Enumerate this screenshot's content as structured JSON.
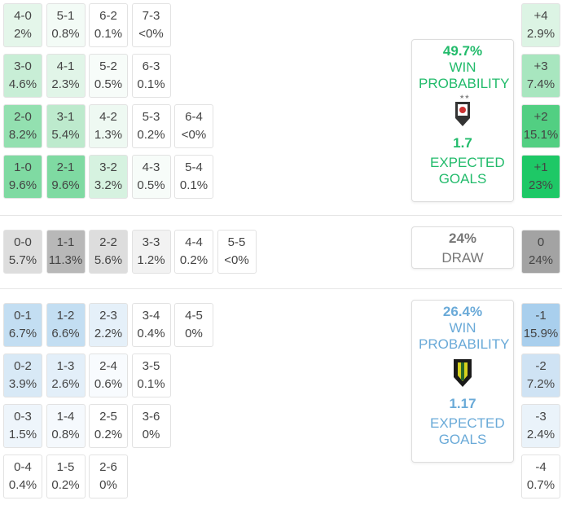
{
  "home": {
    "rows": [
      [
        {
          "score": "4-0",
          "pct": "2%",
          "color": "#e4f6ea"
        },
        {
          "score": "5-1",
          "pct": "0.8%",
          "color": "#f3fbf6"
        },
        {
          "score": "6-2",
          "pct": "0.1%",
          "color": "#ffffff"
        },
        {
          "score": "7-3",
          "pct": "<0%",
          "color": "#ffffff"
        }
      ],
      [
        {
          "score": "3-0",
          "pct": "4.6%",
          "color": "#c8eed6"
        },
        {
          "score": "4-1",
          "pct": "2.3%",
          "color": "#e1f5e8"
        },
        {
          "score": "5-2",
          "pct": "0.5%",
          "color": "#f7fcf9"
        },
        {
          "score": "6-3",
          "pct": "0.1%",
          "color": "#ffffff"
        }
      ],
      [
        {
          "score": "2-0",
          "pct": "8.2%",
          "color": "#93e0b0"
        },
        {
          "score": "3-1",
          "pct": "5.4%",
          "color": "#bdeacd"
        },
        {
          "score": "4-2",
          "pct": "1.3%",
          "color": "#eef9f2"
        },
        {
          "score": "5-3",
          "pct": "0.2%",
          "color": "#ffffff"
        },
        {
          "score": "6-4",
          "pct": "<0%",
          "color": "#ffffff"
        }
      ],
      [
        {
          "score": "1-0",
          "pct": "9.6%",
          "color": "#7fdaa2"
        },
        {
          "score": "2-1",
          "pct": "9.6%",
          "color": "#7fdaa2"
        },
        {
          "score": "3-2",
          "pct": "3.2%",
          "color": "#d6f2e0"
        },
        {
          "score": "4-3",
          "pct": "0.5%",
          "color": "#f7fcf9"
        },
        {
          "score": "5-4",
          "pct": "0.1%",
          "color": "#ffffff"
        }
      ]
    ],
    "margins": [
      {
        "label": "+4",
        "pct": "2.9%",
        "color": "#dcf4e4"
      },
      {
        "label": "+3",
        "pct": "7.4%",
        "color": "#a8e6bf"
      },
      {
        "label": "+2",
        "pct": "15.1%",
        "color": "#52cf82"
      },
      {
        "label": "+1",
        "pct": "23%",
        "color": "#1ec866"
      }
    ],
    "summary": {
      "win_pct": "49.7%",
      "win_label": "WIN PROBABILITY",
      "xg": "1.7",
      "xg_label": "EXPECTED GOALS",
      "color": "#22bb6b"
    }
  },
  "draw": {
    "row": [
      {
        "score": "0-0",
        "pct": "5.7%",
        "color": "#dddddd"
      },
      {
        "score": "1-1",
        "pct": "11.3%",
        "color": "#b8b8b8"
      },
      {
        "score": "2-2",
        "pct": "5.6%",
        "color": "#dddddd"
      },
      {
        "score": "3-3",
        "pct": "1.2%",
        "color": "#f2f2f2"
      },
      {
        "score": "4-4",
        "pct": "0.2%",
        "color": "#ffffff"
      },
      {
        "score": "5-5",
        "pct": "<0%",
        "color": "#ffffff"
      }
    ],
    "margin": {
      "label": "0",
      "pct": "24%",
      "color": "#a3a3a3"
    },
    "summary": {
      "pct": "24%",
      "label": "DRAW",
      "color": "#777777"
    }
  },
  "away": {
    "rows": [
      [
        {
          "score": "0-1",
          "pct": "6.7%",
          "color": "#c3def2"
        },
        {
          "score": "1-2",
          "pct": "6.6%",
          "color": "#c3def2"
        },
        {
          "score": "2-3",
          "pct": "2.2%",
          "color": "#e5f0f9"
        },
        {
          "score": "3-4",
          "pct": "0.4%",
          "color": "#ffffff"
        },
        {
          "score": "4-5",
          "pct": "0%",
          "color": "#ffffff"
        }
      ],
      [
        {
          "score": "0-2",
          "pct": "3.9%",
          "color": "#d8e9f6"
        },
        {
          "score": "1-3",
          "pct": "2.6%",
          "color": "#e3eff9"
        },
        {
          "score": "2-4",
          "pct": "0.6%",
          "color": "#f8fbfe"
        },
        {
          "score": "3-5",
          "pct": "0.1%",
          "color": "#ffffff"
        }
      ],
      [
        {
          "score": "0-3",
          "pct": "1.5%",
          "color": "#eef5fb"
        },
        {
          "score": "1-4",
          "pct": "0.8%",
          "color": "#f5f9fd"
        },
        {
          "score": "2-5",
          "pct": "0.2%",
          "color": "#ffffff"
        },
        {
          "score": "3-6",
          "pct": "0%",
          "color": "#ffffff"
        }
      ],
      [
        {
          "score": "0-4",
          "pct": "0.4%",
          "color": "#ffffff"
        },
        {
          "score": "1-5",
          "pct": "0.2%",
          "color": "#ffffff"
        },
        {
          "score": "2-6",
          "pct": "0%",
          "color": "#ffffff"
        }
      ]
    ],
    "margins": [
      {
        "label": "-1",
        "pct": "15.9%",
        "color": "#a9cfed"
      },
      {
        "label": "-2",
        "pct": "7.2%",
        "color": "#cfe3f4"
      },
      {
        "label": "-3",
        "pct": "2.4%",
        "color": "#eaf3fa"
      },
      {
        "label": "-4",
        "pct": "0.7%",
        "color": "#ffffff"
      }
    ],
    "summary": {
      "win_pct": "26.4%",
      "win_label": "WIN PROBABILITY",
      "xg": "1.17",
      "xg_label": "EXPECTED GOALS",
      "color": "#6aaad8"
    }
  }
}
